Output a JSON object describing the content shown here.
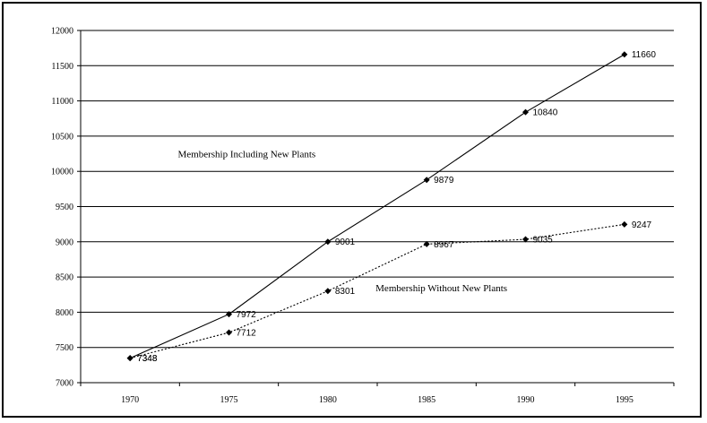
{
  "chart_data": {
    "type": "line",
    "categories": [
      "1970",
      "1975",
      "1980",
      "1985",
      "1990",
      "1995"
    ],
    "ylim": [
      7000,
      12000
    ],
    "yticks": [
      7000,
      7500,
      8000,
      8500,
      9000,
      9500,
      10000,
      10500,
      11000,
      11500,
      12000
    ],
    "grid": "horizontal",
    "series": [
      {
        "values": [
          7348,
          7972,
          9001,
          9879,
          10840,
          11660
        ],
        "line_style": "solid",
        "color": "#000000",
        "marker": "diamond"
      },
      {
        "values": [
          7348,
          7712,
          8301,
          8967,
          9035,
          9247
        ],
        "line_style": "dotted",
        "color": "#000000",
        "marker": "diamond"
      }
    ],
    "annotations": [
      {
        "text": "Membership Including New Plants",
        "x": "1975",
        "y": 10200
      },
      {
        "text": "Membership Without New Plants",
        "x": "1985",
        "y": 8300
      }
    ]
  }
}
